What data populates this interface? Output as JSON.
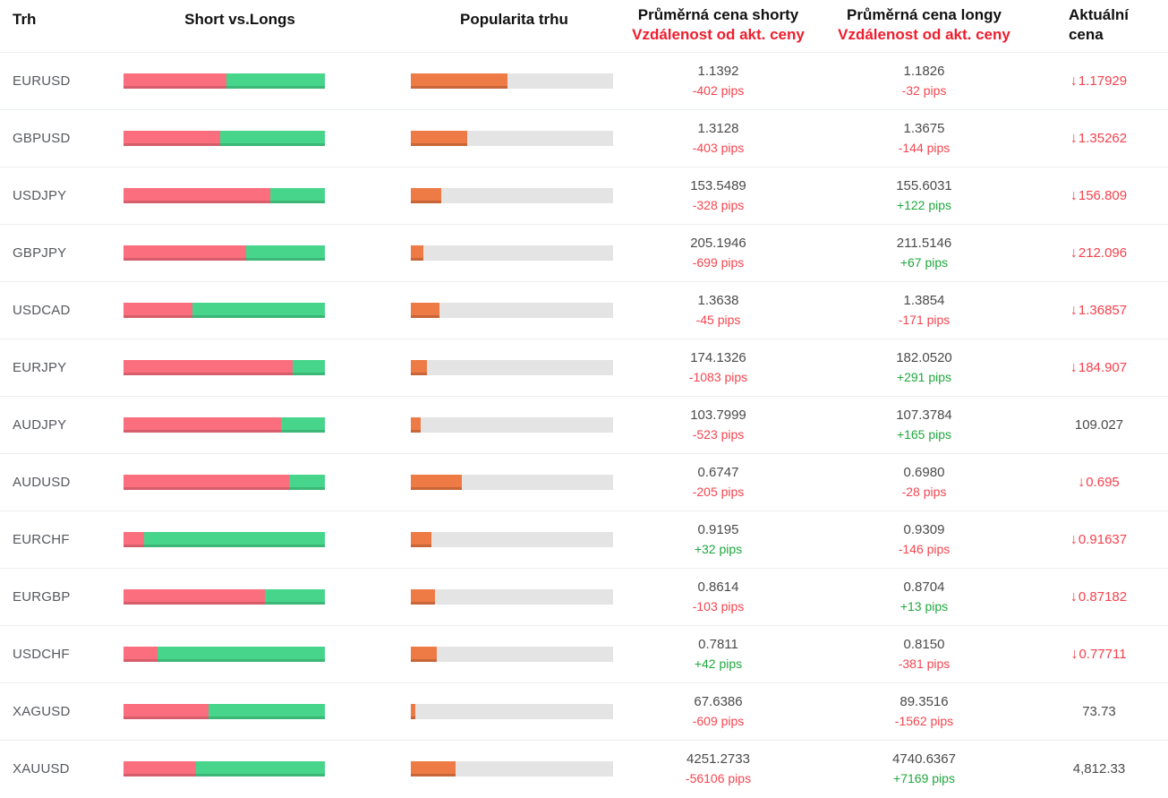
{
  "colors": {
    "short_bar": "#fa6e7e",
    "long_bar": "#46d58b",
    "popularity_bar": "#ee7a45",
    "popularity_track": "#e4e4e4",
    "negative_text": "#f5454f",
    "positive_text": "#1fa73e",
    "header_red": "#ee1d2d",
    "current_down": "#f4424d"
  },
  "icons": {
    "down_arrow": "↓"
  },
  "header": {
    "market": "Trh",
    "short_vs_longs": "Short vs.Longs",
    "popularity": "Popularita trhu",
    "avg_short_line1": "Průměrná cena shorty",
    "avg_short_line2": "Vzdálenost od akt. ceny",
    "avg_long_line1": "Průměrná cena longy",
    "avg_long_line2": "Vzdálenost od akt. ceny",
    "current_line1": "Aktuální",
    "current_line2": "cena"
  },
  "rows": [
    {
      "market": "EURUSD",
      "short_pct": 51,
      "popularity_pct": 48,
      "short_price": "1.1392",
      "short_pips": "-402 pips",
      "short_dir": "neg",
      "long_price": "1.1826",
      "long_pips": "-32 pips",
      "long_dir": "neg",
      "current": "1.17929",
      "current_dir": "down"
    },
    {
      "market": "GBPUSD",
      "short_pct": 48,
      "popularity_pct": 28,
      "short_price": "1.3128",
      "short_pips": "-403 pips",
      "short_dir": "neg",
      "long_price": "1.3675",
      "long_pips": "-144 pips",
      "long_dir": "neg",
      "current": "1.35262",
      "current_dir": "down"
    },
    {
      "market": "USDJPY",
      "short_pct": 73,
      "popularity_pct": 15,
      "short_price": "153.5489",
      "short_pips": "-328 pips",
      "short_dir": "neg",
      "long_price": "155.6031",
      "long_pips": "+122 pips",
      "long_dir": "pos",
      "current": "156.809",
      "current_dir": "down"
    },
    {
      "market": "GBPJPY",
      "short_pct": 61,
      "popularity_pct": 6,
      "short_price": "205.1946",
      "short_pips": "-699 pips",
      "short_dir": "neg",
      "long_price": "211.5146",
      "long_pips": "+67 pips",
      "long_dir": "pos",
      "current": "212.096",
      "current_dir": "down"
    },
    {
      "market": "USDCAD",
      "short_pct": 34,
      "popularity_pct": 14,
      "short_price": "1.3638",
      "short_pips": "-45 pips",
      "short_dir": "neg",
      "long_price": "1.3854",
      "long_pips": "-171 pips",
      "long_dir": "neg",
      "current": "1.36857",
      "current_dir": "down"
    },
    {
      "market": "EURJPY",
      "short_pct": 84,
      "popularity_pct": 8,
      "short_price": "174.1326",
      "short_pips": "-1083 pips",
      "short_dir": "neg",
      "long_price": "182.0520",
      "long_pips": "+291 pips",
      "long_dir": "pos",
      "current": "184.907",
      "current_dir": "down"
    },
    {
      "market": "AUDJPY",
      "short_pct": 78,
      "popularity_pct": 5,
      "short_price": "103.7999",
      "short_pips": "-523 pips",
      "short_dir": "neg",
      "long_price": "107.3784",
      "long_pips": "+165 pips",
      "long_dir": "pos",
      "current": "109.027",
      "current_dir": "none"
    },
    {
      "market": "AUDUSD",
      "short_pct": 82,
      "popularity_pct": 25,
      "short_price": "0.6747",
      "short_pips": "-205 pips",
      "short_dir": "neg",
      "long_price": "0.6980",
      "long_pips": "-28 pips",
      "long_dir": "neg",
      "current": "0.695",
      "current_dir": "down"
    },
    {
      "market": "EURCHF",
      "short_pct": 10,
      "popularity_pct": 10,
      "short_price": "0.9195",
      "short_pips": "+32 pips",
      "short_dir": "pos",
      "long_price": "0.9309",
      "long_pips": "-146 pips",
      "long_dir": "neg",
      "current": "0.91637",
      "current_dir": "down"
    },
    {
      "market": "EURGBP",
      "short_pct": 70,
      "popularity_pct": 12,
      "short_price": "0.8614",
      "short_pips": "-103 pips",
      "short_dir": "neg",
      "long_price": "0.8704",
      "long_pips": "+13 pips",
      "long_dir": "pos",
      "current": "0.87182",
      "current_dir": "down"
    },
    {
      "market": "USDCHF",
      "short_pct": 17,
      "popularity_pct": 13,
      "short_price": "0.7811",
      "short_pips": "+42 pips",
      "short_dir": "pos",
      "long_price": "0.8150",
      "long_pips": "-381 pips",
      "long_dir": "neg",
      "current": "0.77711",
      "current_dir": "down"
    },
    {
      "market": "XAGUSD",
      "short_pct": 42,
      "popularity_pct": 2,
      "short_price": "67.6386",
      "short_pips": "-609 pips",
      "short_dir": "neg",
      "long_price": "89.3516",
      "long_pips": "-1562 pips",
      "long_dir": "neg",
      "current": "73.73",
      "current_dir": "none"
    },
    {
      "market": "XAUUSD",
      "short_pct": 36,
      "popularity_pct": 22,
      "short_price": "4251.2733",
      "short_pips": "-56106 pips",
      "short_dir": "neg",
      "long_price": "4740.6367",
      "long_pips": "+7169 pips",
      "long_dir": "pos",
      "current": "4,812.33",
      "current_dir": "none"
    }
  ]
}
